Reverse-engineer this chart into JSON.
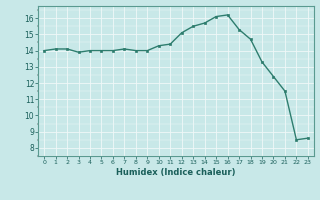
{
  "x": [
    0,
    1,
    2,
    3,
    4,
    5,
    6,
    7,
    8,
    9,
    10,
    11,
    12,
    13,
    14,
    15,
    16,
    17,
    18,
    19,
    20,
    21,
    22,
    23
  ],
  "y": [
    14.0,
    14.1,
    14.1,
    13.9,
    14.0,
    14.0,
    14.0,
    14.1,
    14.0,
    14.0,
    14.3,
    14.4,
    15.1,
    15.5,
    15.7,
    16.1,
    16.2,
    15.3,
    14.7,
    13.3,
    12.4,
    11.5,
    8.5,
    8.6
  ],
  "xlabel": "Humidex (Indice chaleur)",
  "xlim": [
    -0.5,
    23.5
  ],
  "ylim": [
    7.5,
    16.75
  ],
  "yticks": [
    8,
    9,
    10,
    11,
    12,
    13,
    14,
    15,
    16
  ],
  "xticks": [
    0,
    1,
    2,
    3,
    4,
    5,
    6,
    7,
    8,
    9,
    10,
    11,
    12,
    13,
    14,
    15,
    16,
    17,
    18,
    19,
    20,
    21,
    22,
    23
  ],
  "line_color": "#2e7d6e",
  "bg_color": "#c8e8e8",
  "grid_color": "#e8f8f8",
  "fig_bg": "#c8e8e8"
}
